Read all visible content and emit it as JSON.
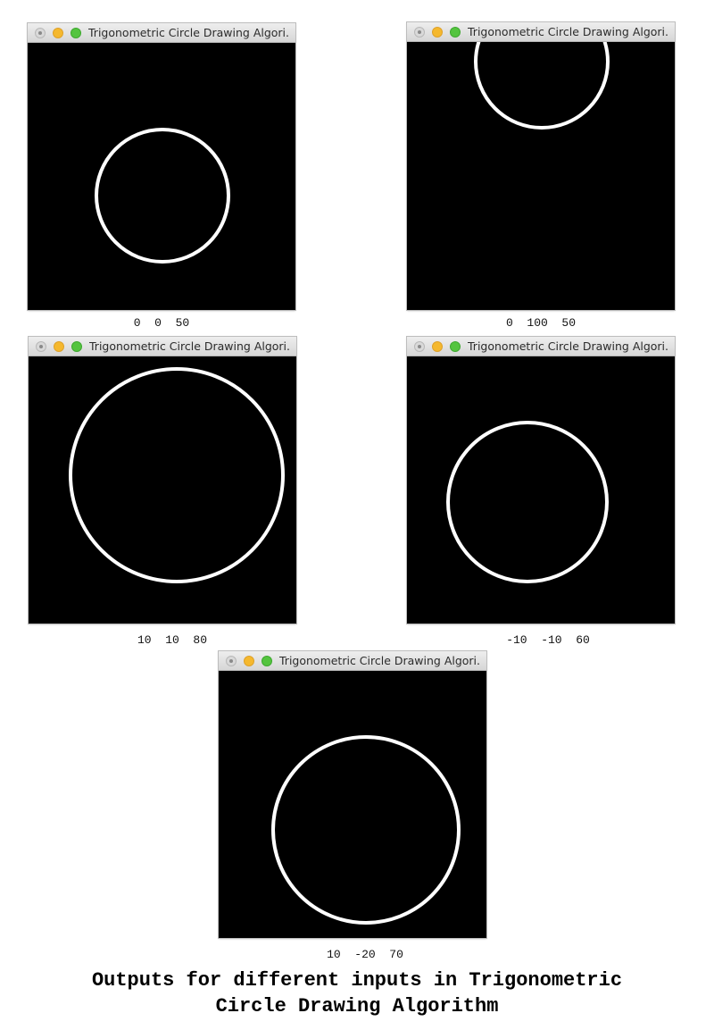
{
  "windows": [
    {
      "title": "Trigonometric Circle Drawing Algori...",
      "caption": "0  0  50",
      "controls": {
        "close": "close-icon",
        "minimize": "minimize-icon",
        "maximize": "maximize-icon"
      }
    },
    {
      "title": "Trigonometric Circle Drawing Algori...",
      "caption": "0  100  50",
      "controls": {
        "close": "close-icon",
        "minimize": "minimize-icon",
        "maximize": "maximize-icon"
      }
    },
    {
      "title": "Trigonometric Circle Drawing Algori...",
      "caption": "10  10  80",
      "controls": {
        "close": "close-icon",
        "minimize": "minimize-icon",
        "maximize": "maximize-icon"
      }
    },
    {
      "title": "Trigonometric Circle Drawing Algori...",
      "caption": "-10  -10  60",
      "controls": {
        "close": "close-icon",
        "minimize": "minimize-icon",
        "maximize": "maximize-icon"
      }
    },
    {
      "title": "Trigonometric Circle Drawing Algori...",
      "caption": "10  -20  70",
      "controls": {
        "close": "close-icon",
        "minimize": "minimize-icon",
        "maximize": "maximize-icon"
      }
    }
  ],
  "footer": {
    "line1": "Outputs for different inputs in Trigonometric",
    "line2": "Circle Drawing Algorithm"
  },
  "colors": {
    "canvas": "#000000",
    "circle": "#ffffff",
    "close": "#d9d9d9",
    "minimize": "#f5b82e",
    "maximize": "#54c43f"
  }
}
